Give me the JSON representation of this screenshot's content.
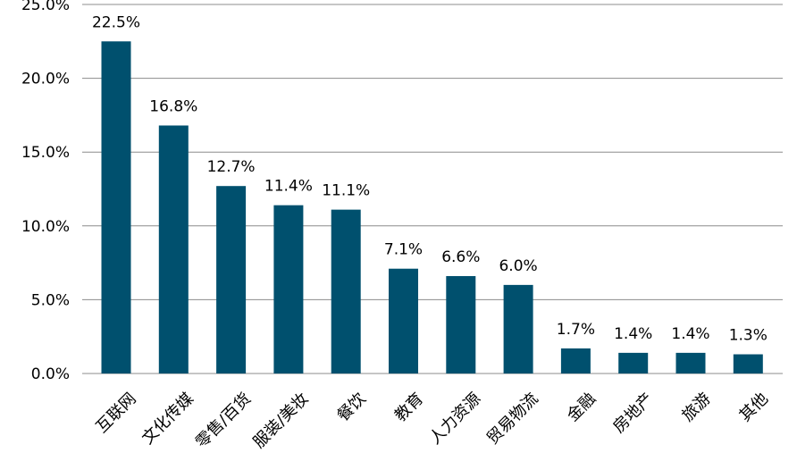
{
  "chart_data": {
    "type": "bar",
    "title": "",
    "xlabel": "",
    "ylabel": "",
    "ylim": [
      0,
      25
    ],
    "yticks": [
      0,
      5,
      10,
      15,
      20,
      25
    ],
    "ytick_labels": [
      "0.0%",
      "5.0%",
      "10.0%",
      "15.0%",
      "20.0%",
      "25.0%"
    ],
    "grid": true,
    "legend": "none",
    "bar_color": "#00506e",
    "categories": [
      "互联网",
      "文化传媒",
      "零售/百货",
      "服装/美妆",
      "餐饮",
      "教育",
      "人力资源",
      "贸易物流",
      "金融",
      "房地产",
      "旅游",
      "其他"
    ],
    "values": [
      22.5,
      16.8,
      12.7,
      11.4,
      11.1,
      7.1,
      6.6,
      6.0,
      1.7,
      1.4,
      1.4,
      1.3
    ],
    "data_labels": [
      "22.5%",
      "16.8%",
      "12.7%",
      "11.4%",
      "11.1%",
      "7.1%",
      "6.6%",
      "6.0%",
      "1.7%",
      "1.4%",
      "1.4%",
      "1.3%"
    ]
  }
}
